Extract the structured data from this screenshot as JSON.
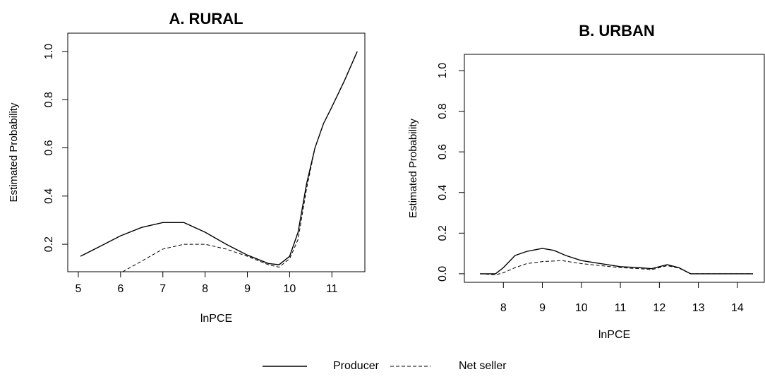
{
  "chart_data": [
    {
      "type": "line",
      "title": "A. RURAL",
      "xlabel": "lnPCE",
      "ylabel": "Estimated Probability",
      "xlim": [
        4.75,
        11.78
      ],
      "ylim": [
        0.086,
        1.076
      ],
      "xticks": [
        5,
        6,
        7,
        8,
        9,
        10,
        11
      ],
      "yticks": [
        0.2,
        0.4,
        0.6,
        0.8,
        {
          "value": 1.0,
          "label": "1.0"
        }
      ],
      "series": [
        {
          "name": "Producer",
          "color": "#000000",
          "dash": false,
          "x": [
            5.05,
            5.5,
            6,
            6.5,
            7,
            7.5,
            8,
            8.5,
            9,
            9.5,
            9.75,
            10,
            10.2,
            10.4,
            10.6,
            10.8,
            11,
            11.3,
            11.6
          ],
          "values": [
            0.15,
            0.19,
            0.235,
            0.27,
            0.29,
            0.29,
            0.25,
            0.2,
            0.155,
            0.12,
            0.115,
            0.15,
            0.25,
            0.45,
            0.6,
            0.7,
            0.77,
            0.88,
            1.0
          ]
        },
        {
          "name": "Net seller",
          "color": "#000000",
          "dash": true,
          "x": [
            6.05,
            6.5,
            7,
            7.5,
            8,
            8.5,
            9,
            9.5,
            9.75,
            10,
            10.2,
            10.4,
            10.6
          ],
          "values": [
            0.086,
            0.13,
            0.18,
            0.2,
            0.2,
            0.18,
            0.15,
            0.115,
            0.105,
            0.14,
            0.22,
            0.43,
            0.6
          ]
        }
      ]
    },
    {
      "type": "line",
      "title": "B. URBAN",
      "xlabel": "lnPCE",
      "ylabel": "Estimated Probability",
      "xlim": [
        7.0,
        14.69
      ],
      "ylim": [
        -0.042,
        1.08
      ],
      "xticks": [
        8,
        9,
        10,
        11,
        12,
        13,
        14
      ],
      "yticks": [
        {
          "value": 0.0,
          "label": "0.0"
        },
        0.2,
        0.4,
        0.6,
        0.8,
        {
          "value": 1.0,
          "label": "1.0"
        }
      ],
      "series": [
        {
          "name": "Producer",
          "color": "#000000",
          "dash": false,
          "x": [
            7.4,
            7.8,
            8.0,
            8.3,
            8.6,
            9,
            9.3,
            9.6,
            10,
            10.5,
            11,
            11.5,
            11.8,
            12.2,
            12.5,
            12.8,
            13.5,
            14.4
          ],
          "values": [
            0,
            0,
            0.03,
            0.09,
            0.11,
            0.125,
            0.115,
            0.09,
            0.065,
            0.05,
            0.035,
            0.03,
            0.025,
            0.045,
            0.03,
            0,
            0,
            0
          ]
        },
        {
          "name": "Net seller",
          "color": "#000000",
          "dash": true,
          "x": [
            7.4,
            7.8,
            8.0,
            8.3,
            8.6,
            9,
            9.5,
            10,
            10.5,
            11,
            11.5,
            11.8,
            12.2,
            12.5,
            12.8,
            14.4
          ],
          "values": [
            0,
            -0.005,
            0.005,
            0.03,
            0.05,
            0.06,
            0.065,
            0.05,
            0.04,
            0.03,
            0.025,
            0.02,
            0.04,
            0.028,
            0,
            0
          ]
        }
      ]
    }
  ]
}
